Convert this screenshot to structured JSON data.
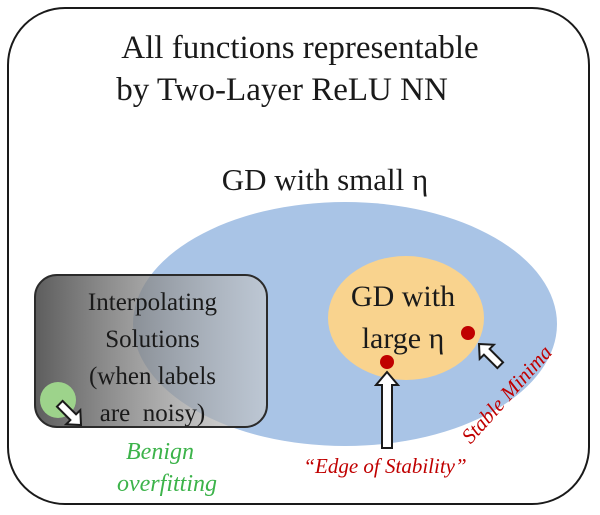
{
  "title": {
    "line1": "All functions representable",
    "line2": "by Two-Layer ReLU NN"
  },
  "regions": {
    "gd_small": {
      "label": "GD with small η"
    },
    "gd_large": {
      "line1": "GD with",
      "line2": "large η"
    },
    "interpolating": {
      "line1": "Interpolating",
      "line2": "Solutions",
      "line3": "(when labels",
      "line4": "are  noisy)"
    }
  },
  "annotations": {
    "benign": {
      "line1": "Benign",
      "line2": "overfitting"
    },
    "edge_of_stability": "“Edge of Stability”",
    "stable_minima": "Stable Minima"
  },
  "colors": {
    "gd_small_fill": "#a9c4e6",
    "gd_large_fill": "#f9d38e",
    "interp_fill_dark": "#555555",
    "interp_fill_light": "#c9c9c9",
    "benign_dot": "#9dd38b",
    "minima_dot": "#c00000",
    "benign_text": "#3cb34a",
    "red_text": "#c00000"
  }
}
